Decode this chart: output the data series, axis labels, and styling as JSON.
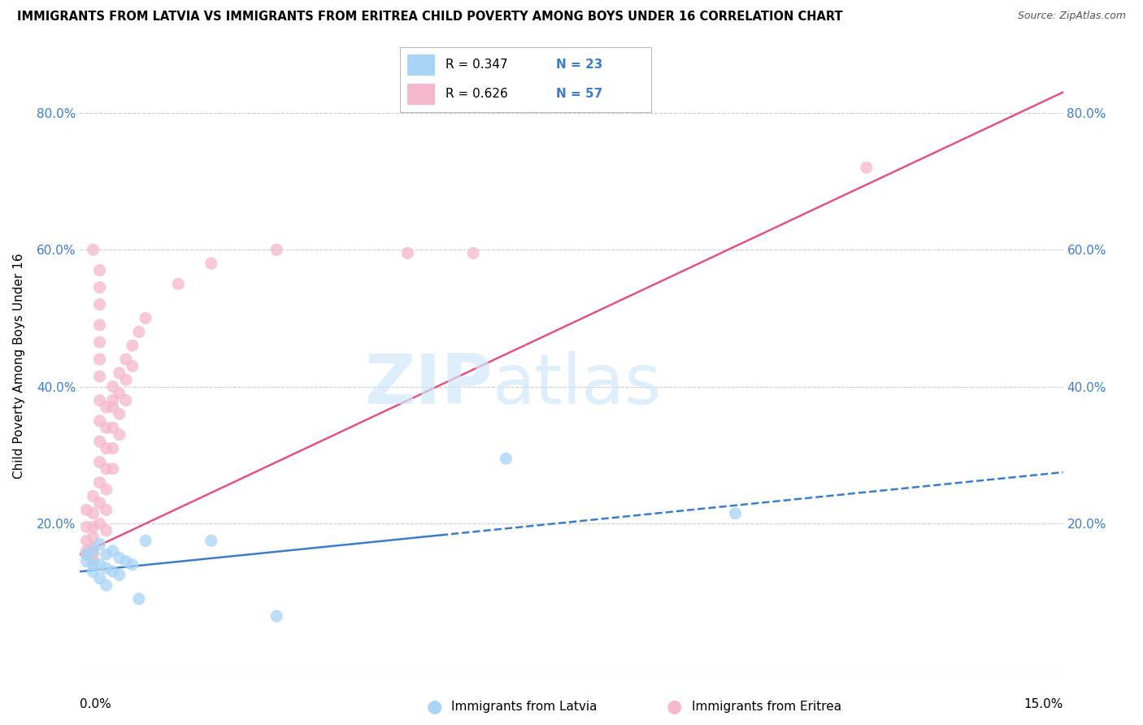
{
  "title": "IMMIGRANTS FROM LATVIA VS IMMIGRANTS FROM ERITREA CHILD POVERTY AMONG BOYS UNDER 16 CORRELATION CHART",
  "source": "Source: ZipAtlas.com",
  "ylabel": "Child Poverty Among Boys Under 16",
  "xlim": [
    0,
    0.15
  ],
  "ylim": [
    -0.02,
    0.88
  ],
  "legend_r_latvia": "R = 0.347",
  "legend_n_latvia": "N = 23",
  "legend_r_eritrea": "R = 0.626",
  "legend_n_eritrea": "N = 57",
  "latvia_color": "#a8d4f5",
  "eritrea_color": "#f5b8cc",
  "line_latvia_color": "#3d7dc8",
  "line_eritrea_color": "#e05580",
  "latvia_scatter": [
    [
      0.001,
      0.155
    ],
    [
      0.001,
      0.145
    ],
    [
      0.002,
      0.14
    ],
    [
      0.002,
      0.16
    ],
    [
      0.002,
      0.13
    ],
    [
      0.003,
      0.17
    ],
    [
      0.003,
      0.14
    ],
    [
      0.003,
      0.12
    ],
    [
      0.004,
      0.155
    ],
    [
      0.004,
      0.135
    ],
    [
      0.004,
      0.11
    ],
    [
      0.005,
      0.16
    ],
    [
      0.005,
      0.13
    ],
    [
      0.006,
      0.15
    ],
    [
      0.006,
      0.125
    ],
    [
      0.007,
      0.145
    ],
    [
      0.008,
      0.14
    ],
    [
      0.009,
      0.09
    ],
    [
      0.01,
      0.175
    ],
    [
      0.02,
      0.175
    ],
    [
      0.03,
      0.065
    ],
    [
      0.065,
      0.295
    ],
    [
      0.1,
      0.215
    ]
  ],
  "eritrea_scatter": [
    [
      0.001,
      0.195
    ],
    [
      0.001,
      0.175
    ],
    [
      0.001,
      0.16
    ],
    [
      0.001,
      0.155
    ],
    [
      0.001,
      0.22
    ],
    [
      0.002,
      0.24
    ],
    [
      0.002,
      0.215
    ],
    [
      0.002,
      0.195
    ],
    [
      0.002,
      0.18
    ],
    [
      0.002,
      0.165
    ],
    [
      0.002,
      0.155
    ],
    [
      0.002,
      0.145
    ],
    [
      0.002,
      0.6
    ],
    [
      0.003,
      0.57
    ],
    [
      0.003,
      0.545
    ],
    [
      0.003,
      0.52
    ],
    [
      0.003,
      0.49
    ],
    [
      0.003,
      0.465
    ],
    [
      0.003,
      0.44
    ],
    [
      0.003,
      0.415
    ],
    [
      0.003,
      0.38
    ],
    [
      0.003,
      0.35
    ],
    [
      0.003,
      0.32
    ],
    [
      0.003,
      0.29
    ],
    [
      0.003,
      0.26
    ],
    [
      0.003,
      0.23
    ],
    [
      0.003,
      0.2
    ],
    [
      0.004,
      0.37
    ],
    [
      0.004,
      0.34
    ],
    [
      0.004,
      0.31
    ],
    [
      0.004,
      0.28
    ],
    [
      0.004,
      0.25
    ],
    [
      0.004,
      0.22
    ],
    [
      0.004,
      0.19
    ],
    [
      0.005,
      0.4
    ],
    [
      0.005,
      0.37
    ],
    [
      0.005,
      0.34
    ],
    [
      0.005,
      0.31
    ],
    [
      0.005,
      0.28
    ],
    [
      0.005,
      0.38
    ],
    [
      0.006,
      0.42
    ],
    [
      0.006,
      0.39
    ],
    [
      0.006,
      0.36
    ],
    [
      0.006,
      0.33
    ],
    [
      0.007,
      0.44
    ],
    [
      0.007,
      0.41
    ],
    [
      0.007,
      0.38
    ],
    [
      0.008,
      0.46
    ],
    [
      0.008,
      0.43
    ],
    [
      0.009,
      0.48
    ],
    [
      0.01,
      0.5
    ],
    [
      0.015,
      0.55
    ],
    [
      0.02,
      0.58
    ],
    [
      0.03,
      0.6
    ],
    [
      0.05,
      0.595
    ],
    [
      0.06,
      0.595
    ],
    [
      0.12,
      0.72
    ]
  ],
  "eritrea_line": [
    [
      0.0,
      0.155
    ],
    [
      0.15,
      0.83
    ]
  ],
  "latvia_line": [
    [
      0.0,
      0.13
    ],
    [
      0.15,
      0.275
    ]
  ],
  "latvia_dashed_line": [
    [
      0.05,
      0.195
    ],
    [
      0.15,
      0.275
    ]
  ]
}
